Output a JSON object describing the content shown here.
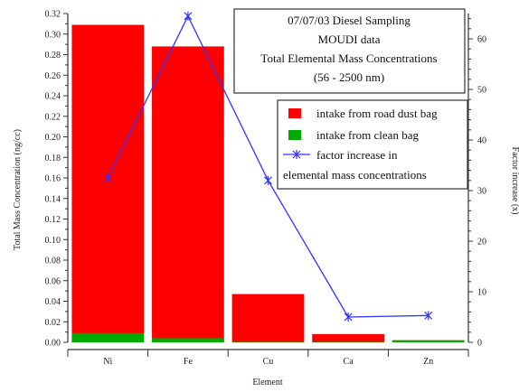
{
  "chart_data": {
    "type": "bar",
    "title_lines": [
      "07/07/03 Diesel Sampling",
      "MOUDI data",
      "Total Elemental Mass Concentrations",
      "(56 - 2500 nm)"
    ],
    "xlabel": "Element",
    "ylabel": "Total Mass Concentration (ng/cc)",
    "y2label": "Factor increase (x)",
    "categories": [
      "Ni",
      "Fe",
      "Cu",
      "Ca",
      "Zn"
    ],
    "ylim": [
      0,
      0.32
    ],
    "yticks": [
      "0.00",
      "0.02",
      "0.04",
      "0.06",
      "0.08",
      "0.10",
      "0.12",
      "0.14",
      "0.16",
      "0.18",
      "0.20",
      "0.22",
      "0.24",
      "0.26",
      "0.28",
      "0.30",
      "0.32"
    ],
    "y2lim": [
      0,
      65
    ],
    "y2ticks": [
      "0",
      "10",
      "20",
      "30",
      "40",
      "50",
      "60"
    ],
    "series": [
      {
        "name": "intake from road dust bag",
        "kind": "bar",
        "color": "#ff0000",
        "values": [
          0.309,
          0.288,
          0.047,
          0.008,
          0.002
        ]
      },
      {
        "name": "intake from clean bag",
        "kind": "bar",
        "color": "#00aa00",
        "values": [
          0.009,
          0.004,
          0.0005,
          0.0005,
          0.002
        ]
      },
      {
        "name": "factor increase in elemental mass concentrations",
        "kind": "line",
        "axis": "right",
        "color": "#3333ff",
        "name_lines": [
          "factor increase in",
          "elemental mass concentrations"
        ],
        "values": [
          32.5,
          64.5,
          32,
          5,
          5.3
        ]
      }
    ],
    "legend_position": "top-right"
  }
}
